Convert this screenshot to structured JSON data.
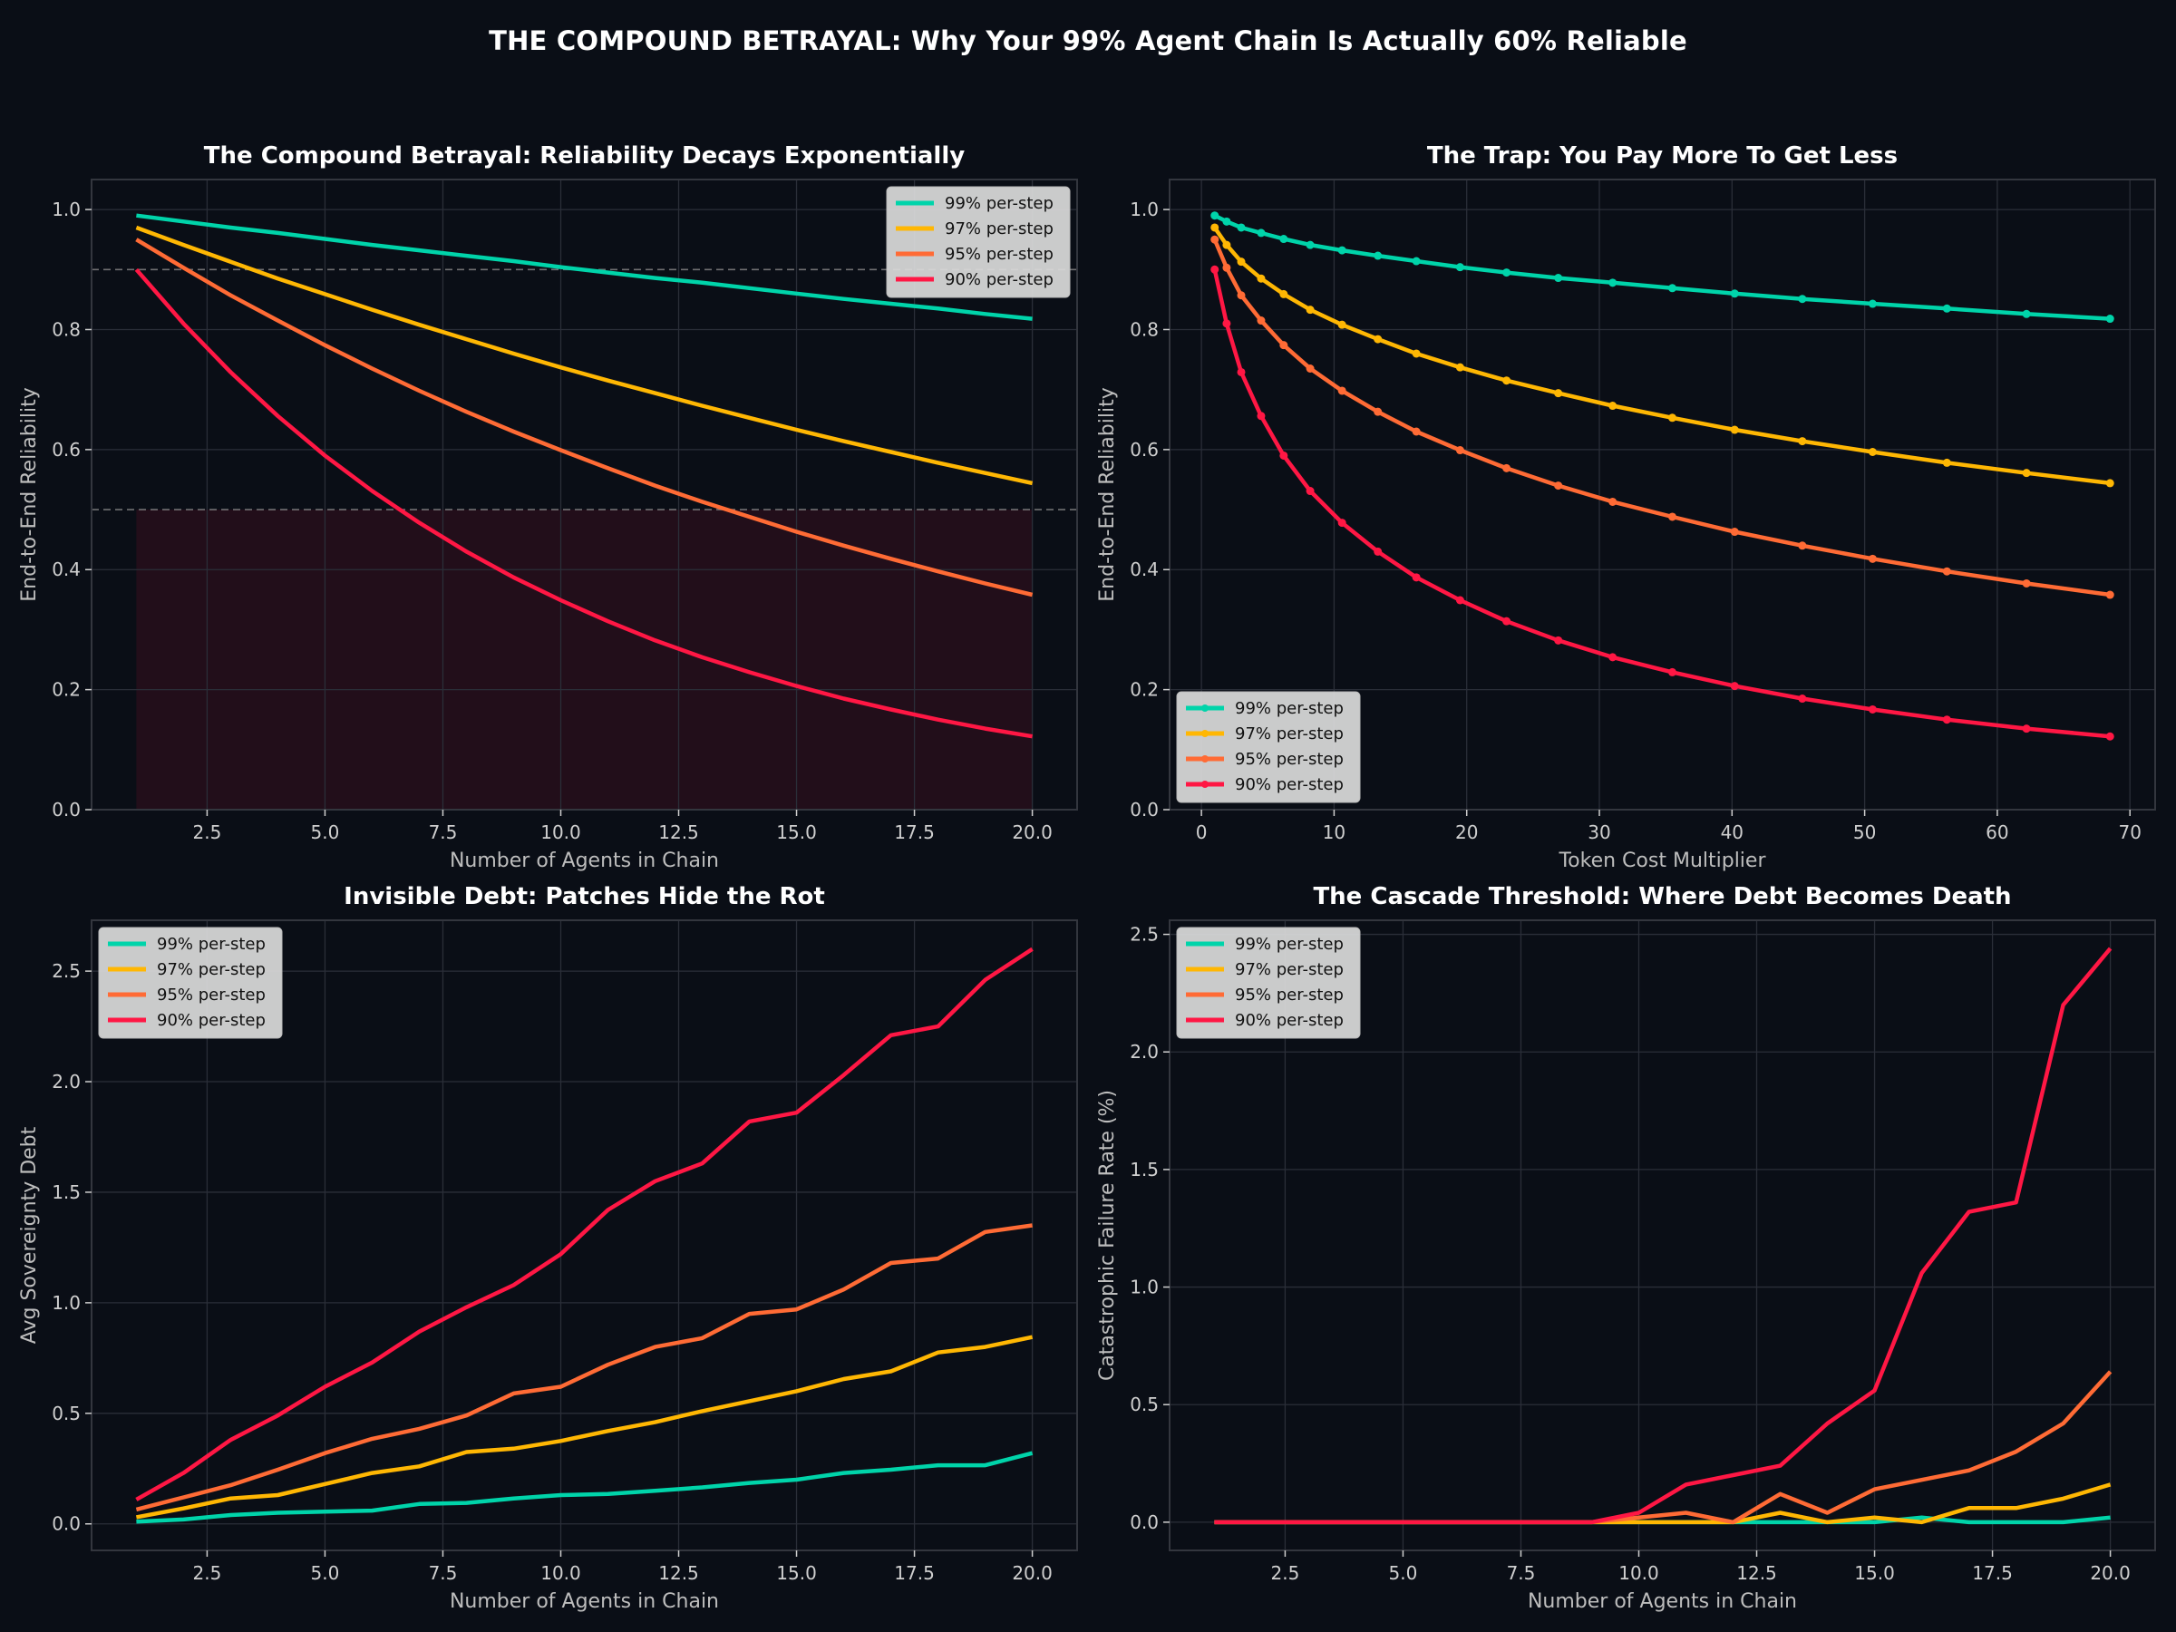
{
  "figure": {
    "suptitle": "THE COMPOUND BETRAYAL: Why Your 99% Agent Chain Is Actually 60% Reliable",
    "background": "#0a0e16"
  },
  "series_meta": [
    {
      "name": "99% per-step",
      "color": "#00d4aa"
    },
    {
      "name": "97% per-step",
      "color": "#ffb703"
    },
    {
      "name": "95% per-step",
      "color": "#ff6b35"
    },
    {
      "name": "90% per-step",
      "color": "#ff1744"
    }
  ],
  "chart_data": [
    {
      "id": "reliability",
      "type": "line",
      "title": "The Compound Betrayal: Reliability Decays Exponentially",
      "xlabel": "Number of Agents in Chain",
      "ylabel": "End-to-End Reliability",
      "xlim": [
        0.05,
        20.95
      ],
      "ylim": [
        0.0,
        1.05
      ],
      "xticks": [
        2.5,
        5.0,
        7.5,
        10.0,
        12.5,
        15.0,
        17.5,
        20.0
      ],
      "xtick_labels": [
        "2.5",
        "5.0",
        "7.5",
        "10.0",
        "12.5",
        "15.0",
        "17.5",
        "20.0"
      ],
      "yticks": [
        0.0,
        0.2,
        0.4,
        0.6,
        0.8,
        1.0
      ],
      "ytick_labels": [
        "0.0",
        "0.2",
        "0.4",
        "0.6",
        "0.8",
        "1.0"
      ],
      "grid": true,
      "legend": "top-right",
      "markers": false,
      "reference_lines": [
        0.9,
        0.5
      ],
      "shaded_region": {
        "x": [
          1,
          20
        ],
        "y": [
          0.0,
          0.5
        ],
        "color": "#ff1744"
      },
      "x": [
        1,
        2,
        3,
        4,
        5,
        6,
        7,
        8,
        9,
        10,
        11,
        12,
        13,
        14,
        15,
        16,
        17,
        18,
        19,
        20
      ],
      "series": [
        {
          "name": "99% per-step",
          "values": [
            0.99,
            0.98,
            0.97,
            0.961,
            0.951,
            0.941,
            0.932,
            0.923,
            0.914,
            0.904,
            0.895,
            0.886,
            0.878,
            0.869,
            0.86,
            0.851,
            0.843,
            0.835,
            0.826,
            0.818
          ]
        },
        {
          "name": "97% per-step",
          "values": [
            0.97,
            0.941,
            0.913,
            0.885,
            0.859,
            0.833,
            0.808,
            0.784,
            0.76,
            0.737,
            0.715,
            0.694,
            0.673,
            0.653,
            0.633,
            0.614,
            0.596,
            0.578,
            0.561,
            0.544
          ]
        },
        {
          "name": "95% per-step",
          "values": [
            0.95,
            0.903,
            0.857,
            0.815,
            0.774,
            0.735,
            0.698,
            0.663,
            0.63,
            0.599,
            0.569,
            0.54,
            0.513,
            0.488,
            0.463,
            0.44,
            0.418,
            0.397,
            0.377,
            0.358
          ]
        },
        {
          "name": "90% per-step",
          "values": [
            0.9,
            0.81,
            0.729,
            0.656,
            0.59,
            0.531,
            0.478,
            0.43,
            0.387,
            0.349,
            0.314,
            0.282,
            0.254,
            0.229,
            0.206,
            0.185,
            0.167,
            0.15,
            0.135,
            0.122
          ]
        }
      ]
    },
    {
      "id": "trap",
      "type": "line",
      "title": "The Trap: You Pay More To Get Less",
      "xlabel": "Token Cost Multiplier",
      "ylabel": "End-to-End Reliability",
      "xlim": [
        -2.4,
        71.9
      ],
      "ylim": [
        0.0,
        1.05
      ],
      "xticks": [
        0,
        10,
        20,
        30,
        40,
        50,
        60,
        70
      ],
      "xtick_labels": [
        "0",
        "10",
        "20",
        "30",
        "40",
        "50",
        "60",
        "70"
      ],
      "yticks": [
        0.0,
        0.2,
        0.4,
        0.6,
        0.8,
        1.0
      ],
      "ytick_labels": [
        "0.0",
        "0.2",
        "0.4",
        "0.6",
        "0.8",
        "1.0"
      ],
      "grid": true,
      "legend": "bottom-left",
      "markers": true,
      "x": [
        1.0,
        1.9,
        3.0,
        4.5,
        6.2,
        8.2,
        10.6,
        13.3,
        16.2,
        19.5,
        23.0,
        26.9,
        31.0,
        35.5,
        40.2,
        45.3,
        50.6,
        56.2,
        62.2,
        68.5
      ],
      "series": [
        {
          "name": "99% per-step",
          "values": [
            0.99,
            0.98,
            0.97,
            0.961,
            0.951,
            0.941,
            0.932,
            0.923,
            0.914,
            0.904,
            0.895,
            0.886,
            0.878,
            0.869,
            0.86,
            0.851,
            0.843,
            0.835,
            0.826,
            0.818
          ]
        },
        {
          "name": "97% per-step",
          "values": [
            0.97,
            0.941,
            0.913,
            0.885,
            0.859,
            0.833,
            0.808,
            0.784,
            0.76,
            0.737,
            0.715,
            0.694,
            0.673,
            0.653,
            0.633,
            0.614,
            0.596,
            0.578,
            0.561,
            0.544
          ]
        },
        {
          "name": "95% per-step",
          "values": [
            0.95,
            0.903,
            0.857,
            0.815,
            0.774,
            0.735,
            0.698,
            0.663,
            0.63,
            0.599,
            0.569,
            0.54,
            0.513,
            0.488,
            0.463,
            0.44,
            0.418,
            0.397,
            0.377,
            0.358
          ]
        },
        {
          "name": "90% per-step",
          "values": [
            0.9,
            0.81,
            0.729,
            0.656,
            0.59,
            0.531,
            0.478,
            0.43,
            0.387,
            0.349,
            0.314,
            0.282,
            0.254,
            0.229,
            0.206,
            0.185,
            0.167,
            0.15,
            0.135,
            0.122
          ]
        }
      ]
    },
    {
      "id": "debt",
      "type": "line",
      "title": "Invisible Debt: Patches Hide the Rot",
      "xlabel": "Number of Agents in Chain",
      "ylabel": "Avg Sovereignty Debt",
      "xlim": [
        0.05,
        20.95
      ],
      "ylim": [
        -0.12,
        2.73
      ],
      "xticks": [
        2.5,
        5.0,
        7.5,
        10.0,
        12.5,
        15.0,
        17.5,
        20.0
      ],
      "xtick_labels": [
        "2.5",
        "5.0",
        "7.5",
        "10.0",
        "12.5",
        "15.0",
        "17.5",
        "20.0"
      ],
      "yticks": [
        0.0,
        0.5,
        1.0,
        1.5,
        2.0,
        2.5
      ],
      "ytick_labels": [
        "0.0",
        "0.5",
        "1.0",
        "1.5",
        "2.0",
        "2.5"
      ],
      "grid": true,
      "legend": "top-left",
      "markers": false,
      "x": [
        1,
        2,
        3,
        4,
        5,
        6,
        7,
        8,
        9,
        10,
        11,
        12,
        13,
        14,
        15,
        16,
        17,
        18,
        19,
        20
      ],
      "series": [
        {
          "name": "99% per-step",
          "values": [
            0.01,
            0.02,
            0.04,
            0.05,
            0.055,
            0.06,
            0.09,
            0.095,
            0.115,
            0.13,
            0.135,
            0.15,
            0.165,
            0.185,
            0.2,
            0.23,
            0.245,
            0.265,
            0.265,
            0.32
          ]
        },
        {
          "name": "97% per-step",
          "values": [
            0.03,
            0.07,
            0.115,
            0.13,
            0.18,
            0.23,
            0.26,
            0.325,
            0.34,
            0.375,
            0.42,
            0.46,
            0.51,
            0.555,
            0.6,
            0.655,
            0.69,
            0.775,
            0.8,
            0.845
          ]
        },
        {
          "name": "95% per-step",
          "values": [
            0.065,
            0.12,
            0.175,
            0.245,
            0.32,
            0.385,
            0.43,
            0.49,
            0.59,
            0.62,
            0.72,
            0.8,
            0.84,
            0.95,
            0.97,
            1.06,
            1.18,
            1.2,
            1.32,
            1.35
          ]
        },
        {
          "name": "90% per-step",
          "values": [
            0.11,
            0.23,
            0.38,
            0.49,
            0.62,
            0.73,
            0.87,
            0.98,
            1.08,
            1.22,
            1.42,
            1.55,
            1.63,
            1.82,
            1.86,
            2.03,
            2.21,
            2.25,
            2.46,
            2.6
          ]
        }
      ]
    },
    {
      "id": "cascade",
      "type": "line",
      "title": "The Cascade Threshold: Where Debt Becomes Death",
      "xlabel": "Number of Agents in Chain",
      "ylabel": "Catastrophic Failure Rate (%)",
      "xlim": [
        0.05,
        20.95
      ],
      "ylim": [
        -0.12,
        2.56
      ],
      "xticks": [
        2.5,
        5.0,
        7.5,
        10.0,
        12.5,
        15.0,
        17.5,
        20.0
      ],
      "xtick_labels": [
        "2.5",
        "5.0",
        "7.5",
        "10.0",
        "12.5",
        "15.0",
        "17.5",
        "20.0"
      ],
      "yticks": [
        0.0,
        0.5,
        1.0,
        1.5,
        2.0,
        2.5
      ],
      "ytick_labels": [
        "0.0",
        "0.5",
        "1.0",
        "1.5",
        "2.0",
        "2.5"
      ],
      "grid": true,
      "legend": "top-left",
      "markers": false,
      "x": [
        1,
        2,
        3,
        4,
        5,
        6,
        7,
        8,
        9,
        10,
        11,
        12,
        13,
        14,
        15,
        16,
        17,
        18,
        19,
        20
      ],
      "series": [
        {
          "name": "99% per-step",
          "values": [
            0,
            0,
            0,
            0,
            0,
            0,
            0,
            0,
            0,
            0,
            0,
            0,
            0,
            0,
            0,
            0.02,
            0,
            0,
            0,
            0.02
          ]
        },
        {
          "name": "97% per-step",
          "values": [
            0,
            0,
            0,
            0,
            0,
            0,
            0,
            0,
            0,
            0,
            0,
            0,
            0.04,
            0,
            0.02,
            0,
            0.06,
            0.06,
            0.1,
            0.16
          ]
        },
        {
          "name": "95% per-step",
          "values": [
            0,
            0,
            0,
            0,
            0,
            0,
            0,
            0,
            0,
            0.02,
            0.04,
            0,
            0.12,
            0.04,
            0.14,
            0.18,
            0.22,
            0.3,
            0.42,
            0.64
          ]
        },
        {
          "name": "90% per-step",
          "values": [
            0,
            0,
            0,
            0,
            0,
            0,
            0,
            0,
            0,
            0.04,
            0.16,
            0.2,
            0.24,
            0.42,
            0.56,
            1.06,
            1.32,
            1.36,
            2.2,
            2.44
          ]
        }
      ]
    }
  ]
}
